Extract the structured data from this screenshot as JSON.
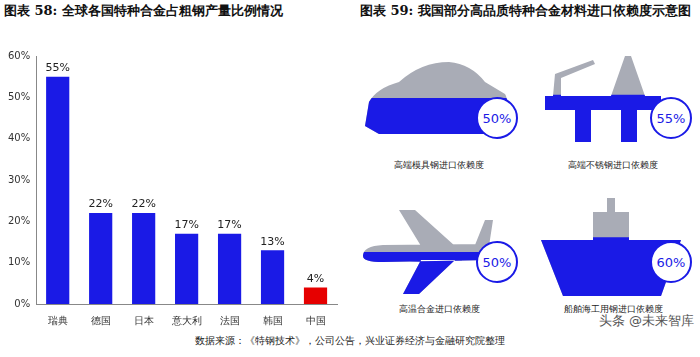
{
  "chart_data": {
    "type": "bar",
    "title": "图表 58: 全球各国特种合金占粗钢产量比例情况",
    "categories": [
      "瑞典",
      "德国",
      "日本",
      "意大利",
      "法国",
      "韩国",
      "中国"
    ],
    "values": [
      55,
      22,
      22,
      17,
      17,
      13,
      4
    ],
    "value_labels": [
      "55%",
      "22%",
      "22%",
      "17%",
      "17%",
      "13%",
      "4%"
    ],
    "colors": [
      "#1a1ae6",
      "#1a1ae6",
      "#1a1ae6",
      "#1a1ae6",
      "#1a1ae6",
      "#1a1ae6",
      "#e60000"
    ],
    "ylim": [
      0,
      60
    ],
    "yticks": [
      {
        "value": 0,
        "label": "0%"
      },
      {
        "value": 10,
        "label": "10%"
      },
      {
        "value": 20,
        "label": "20%"
      },
      {
        "value": 30,
        "label": "30%"
      },
      {
        "value": 40,
        "label": "40%"
      },
      {
        "value": 50,
        "label": "50%"
      },
      {
        "value": 60,
        "label": "60%"
      }
    ],
    "grid": false,
    "data_labels": true
  },
  "infographic": {
    "title": "图表 59: 我国部分高品质特种合金材料进口依赖度示意图",
    "items": [
      {
        "caption": "高端模具钢进口依赖度",
        "value": 50,
        "value_label": "50%"
      },
      {
        "caption": "高端不锈钢进口依赖度",
        "value": 55,
        "value_label": "55%"
      },
      {
        "caption": "高温合金进口依赖度",
        "value": 50,
        "value_label": "50%"
      },
      {
        "caption": "船舶海工用钢进口依赖度",
        "value": 60,
        "value_label": "60%"
      }
    ]
  },
  "source": "数据来源：《特钢技术》，公司公告，兴业证券经济与金融研究院整理",
  "watermark": "头条 @未来智库"
}
